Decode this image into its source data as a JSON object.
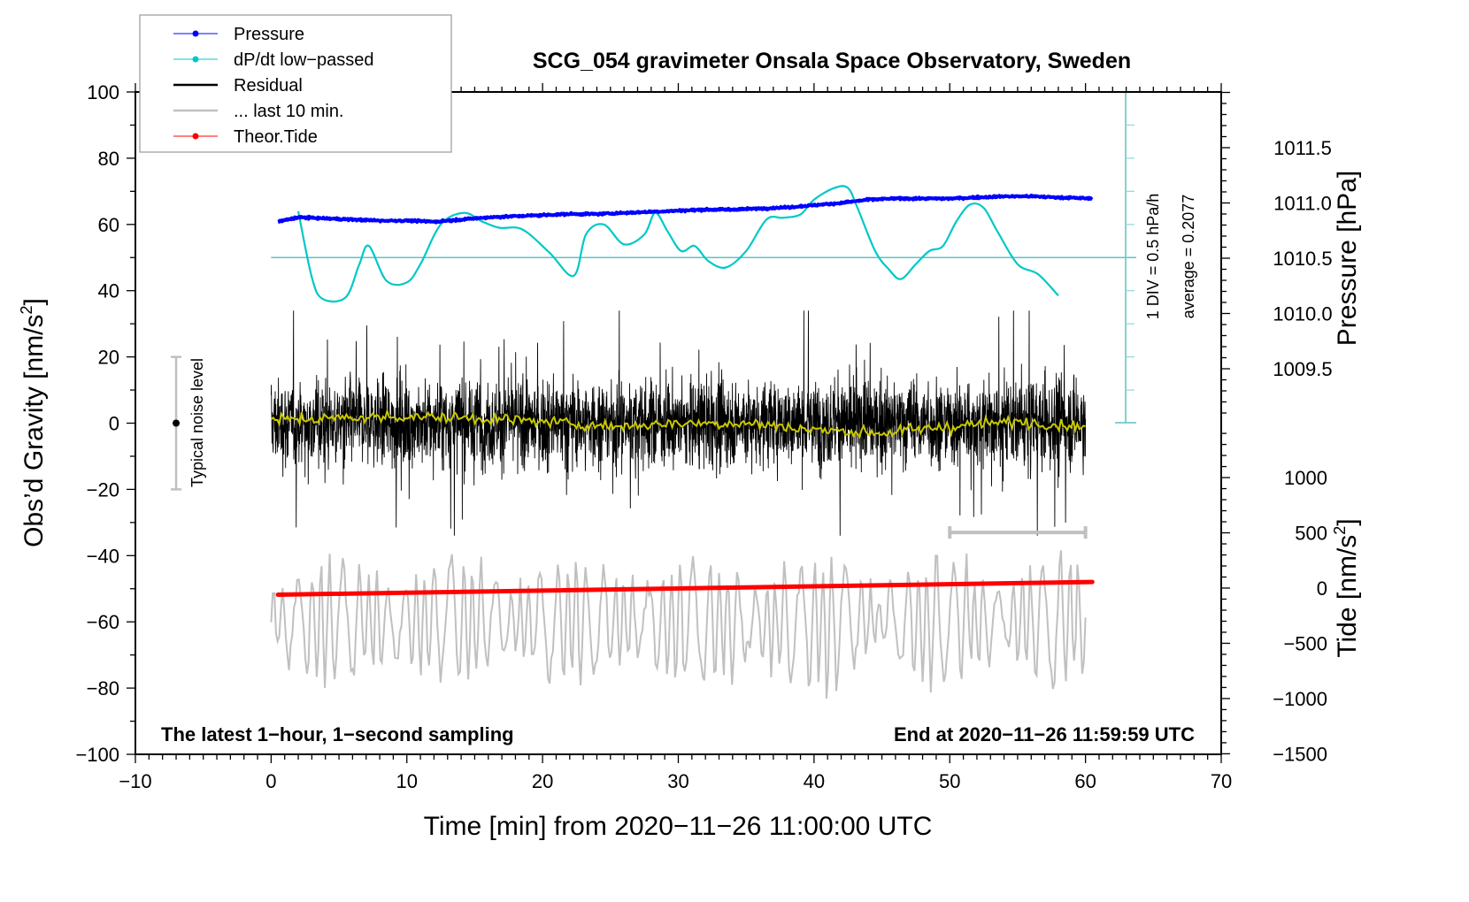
{
  "chart_data": {
    "type": "line",
    "title": "SCG_054 gravimeter Onsala Space Observatory, Sweden",
    "xlabel": "Time [min] from 2020−11−26 11:00:00 UTC",
    "ylabel_left": "Obs’d Gravity [nm/s²]",
    "ylabel_left_main": "Obs’d Gravity [nm/s",
    "ylabel_left_sup": "2",
    "ylabel_left_end": "]",
    "ylabel_right_pressure": "Pressure [hPa]",
    "ylabel_right_tide_main": "Tide [nm/s",
    "ylabel_right_tide_sup": "2",
    "ylabel_right_tide_end": "]",
    "xlim": [
      -10,
      70
    ],
    "ylim": [
      -100,
      100
    ],
    "pressure_lim": [
      1009.0,
      1012.0
    ],
    "tide_lim": [
      -1500,
      1500
    ],
    "x_ticks": [
      -10,
      0,
      10,
      20,
      30,
      40,
      50,
      60,
      70
    ],
    "x_tick_labels": [
      "−10",
      "0",
      "10",
      "20",
      "30",
      "40",
      "50",
      "60",
      "70"
    ],
    "y_ticks": [
      100,
      80,
      60,
      40,
      20,
      0,
      -20,
      -40,
      -60,
      -80,
      -100
    ],
    "y_tick_labels": [
      "100",
      "80",
      "60",
      "40",
      "20",
      "0",
      "−20",
      "−40",
      "−60",
      "−80",
      "−100"
    ],
    "pressure_ticks": [
      1011.5,
      1011.0,
      1010.5,
      1010.0,
      1009.5
    ],
    "pressure_tick_labels": [
      "1011.5",
      "1011.0",
      "1010.5",
      "1010.0",
      "1009.5"
    ],
    "tide_ticks": [
      1000,
      500,
      0,
      -500,
      -1000,
      -1500
    ],
    "tide_tick_labels": [
      "1000",
      "500",
      "0",
      "−500",
      "−1000",
      "−1500"
    ],
    "grid": false,
    "legend_placement": "top-left",
    "legend": [
      {
        "label": "Pressure",
        "color": "#0000ff",
        "marker": true
      },
      {
        "label": "dP/dt low−passed",
        "color": "#00c8c8",
        "marker": true
      },
      {
        "label": "Residual",
        "color": "#000000",
        "marker": false
      },
      {
        "label": "... last 10 min.",
        "color": "#c0c0c0",
        "marker": false
      },
      {
        "label": "Theor.Tide",
        "color": "#ff0000",
        "marker": true
      }
    ],
    "series": [
      {
        "name": "Pressure",
        "axis": "pressure",
        "color": "#0000ff",
        "x": [
          0.5,
          2,
          4,
          6,
          8,
          10,
          12,
          14,
          16,
          18,
          20,
          22,
          24,
          26,
          28,
          30,
          32,
          34,
          36,
          38,
          40,
          42,
          44,
          46,
          48,
          50,
          52,
          54,
          56,
          58,
          60.5
        ],
        "y": [
          1010.83,
          1010.87,
          1010.86,
          1010.85,
          1010.84,
          1010.84,
          1010.83,
          1010.85,
          1010.87,
          1010.88,
          1010.89,
          1010.9,
          1010.9,
          1010.91,
          1010.92,
          1010.93,
          1010.94,
          1010.94,
          1010.95,
          1010.96,
          1010.98,
          1011.0,
          1011.03,
          1011.04,
          1011.04,
          1011.04,
          1011.05,
          1011.06,
          1011.06,
          1011.05,
          1011.04
        ]
      },
      {
        "name": "dP/dt low-passed",
        "axis": "left",
        "color": "#00c8c8",
        "x": [
          2,
          3,
          3.8,
          5.5,
          6.5,
          7.2,
          8.5,
          10,
          11,
          12.5,
          14.2,
          15.5,
          16.8,
          18.5,
          20.5,
          22.3,
          23.2,
          24.5,
          26,
          27.5,
          28.3,
          29.2,
          30.2,
          31.2,
          32.2,
          33.5,
          35,
          36.5,
          37.7,
          39,
          40,
          41.5,
          42.5,
          43.2,
          44.5,
          45.5,
          46.4,
          47.5,
          48.5,
          49.5,
          50.5,
          51.5,
          52.5,
          53.5,
          55,
          56.5,
          58
        ],
        "y": [
          64,
          44,
          37.5,
          38,
          48,
          53.5,
          43,
          42.5,
          48,
          60,
          63.5,
          61,
          59,
          58.5,
          51.5,
          44.5,
          57,
          60,
          54,
          57,
          63.5,
          58,
          52,
          53.5,
          49,
          47,
          52,
          61.5,
          62,
          63,
          67.5,
          71,
          71,
          65,
          52,
          46.5,
          43.5,
          48,
          52,
          53.5,
          61,
          66,
          65,
          58,
          48,
          45,
          38.5
        ]
      },
      {
        "name": "Residual",
        "axis": "left",
        "color": "#000000",
        "x_range": [
          0,
          60
        ],
        "envelope": [
          -34,
          34
        ],
        "typical_amplitude": 12
      },
      {
        "name": "Residual smoothed",
        "axis": "left",
        "color": "#c8c800",
        "x": [
          0,
          5,
          10,
          15,
          20,
          25,
          30,
          35,
          40,
          45,
          50,
          55,
          60
        ],
        "y": [
          1,
          1.5,
          2,
          1.5,
          0.5,
          -1,
          0,
          0,
          -2,
          -3,
          -1,
          0.5,
          -1
        ]
      },
      {
        "name": "... last 10 min.",
        "axis": "left",
        "color": "#c0c0c0",
        "x_range": [
          0,
          60
        ],
        "offset": -60,
        "envelope": [
          -87,
          -37
        ]
      },
      {
        "name": "Theor.Tide",
        "axis": "tide",
        "color": "#ff0000",
        "x": [
          0.5,
          60.5
        ],
        "y": [
          -60,
          55
        ]
      }
    ],
    "annotations": {
      "noise_label": "Typical noise level",
      "noise_bar": {
        "x": -7,
        "center": 0,
        "low": -20,
        "high": 20
      },
      "div_text": "1 DIV = 0.5 hPa/h",
      "average_text": "average = 0.2077",
      "dpdt_zero_level": 50,
      "last10_bar": {
        "x_start": 50,
        "x_end": 60,
        "y": -33
      },
      "bottom_left": "The latest 1−hour, 1−second sampling",
      "bottom_right": "End at 2020−11−26 11:59:59 UTC"
    }
  }
}
